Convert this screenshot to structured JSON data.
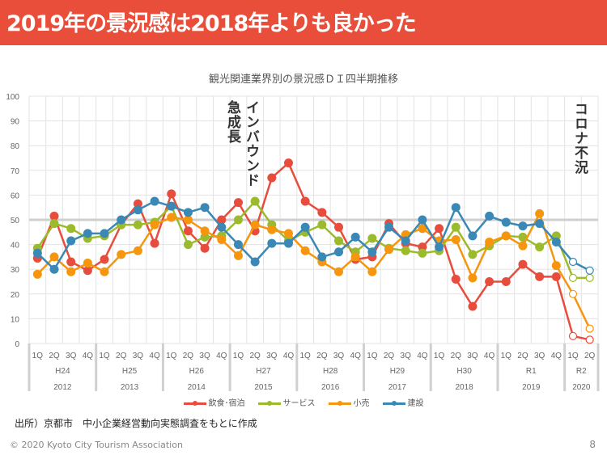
{
  "header": {
    "title": "2019年の景況感は2018年よりも良かった",
    "color": "#e94e3a"
  },
  "annotations": {
    "inbound": "インバウンド",
    "rapid_growth": "急成長",
    "corona": "コロナ不況"
  },
  "source": "出所）京都市　中小企業経営動向実態調査をもとに作成",
  "footer": {
    "copyright": "© 2020 Kyoto City Tourism Association",
    "page": "8"
  },
  "chart_data": {
    "type": "line",
    "title": "観光関連業界別の景況感ＤＩ四半期推移",
    "xlabel": "",
    "ylabel": "",
    "ylim": [
      0,
      100
    ],
    "yticks": [
      0,
      10,
      20,
      30,
      40,
      50,
      60,
      70,
      80,
      90,
      100
    ],
    "grid": true,
    "reference_line": 50,
    "legend_position": "bottom",
    "groups": [
      {
        "era": "H24",
        "year": "2012",
        "quarters": [
          "1Q",
          "2Q",
          "3Q",
          "4Q"
        ]
      },
      {
        "era": "H25",
        "year": "2013",
        "quarters": [
          "1Q",
          "2Q",
          "3Q",
          "4Q"
        ]
      },
      {
        "era": "H26",
        "year": "2014",
        "quarters": [
          "1Q",
          "2Q",
          "3Q",
          "4Q"
        ]
      },
      {
        "era": "H27",
        "year": "2015",
        "quarters": [
          "1Q",
          "2Q",
          "3Q",
          "4Q"
        ]
      },
      {
        "era": "H28",
        "year": "2016",
        "quarters": [
          "1Q",
          "2Q",
          "3Q",
          "4Q"
        ]
      },
      {
        "era": "H29",
        "year": "2017",
        "quarters": [
          "1Q",
          "2Q",
          "3Q",
          "4Q"
        ]
      },
      {
        "era": "H30",
        "year": "2018",
        "quarters": [
          "1Q",
          "2Q",
          "3Q",
          "4Q"
        ]
      },
      {
        "era": "R1",
        "year": "2019",
        "quarters": [
          "1Q",
          "2Q",
          "3Q",
          "4Q"
        ]
      },
      {
        "era": "R2",
        "year": "2020",
        "quarters": [
          "1Q",
          "2Q"
        ]
      }
    ],
    "forecast_from_index": 32,
    "series": [
      {
        "name": "飲食･宿泊",
        "color": "#e84c3d",
        "values": [
          34.5,
          51.5,
          33,
          29.5,
          34,
          48,
          56.5,
          40.5,
          60.5,
          45.5,
          38.5,
          50,
          57,
          45.5,
          67,
          73,
          57.5,
          53,
          47,
          34,
          35,
          48.5,
          40.5,
          39,
          46.5,
          26,
          15,
          25,
          25,
          32,
          27,
          27,
          3,
          1.5
        ]
      },
      {
        "name": "サービス",
        "color": "#9bbb2c",
        "values": [
          38.5,
          48.5,
          46.5,
          42.5,
          43.5,
          48,
          48,
          49,
          55.5,
          40,
          43,
          43.5,
          50,
          57.5,
          48,
          41.5,
          45,
          48,
          41.5,
          37,
          42.5,
          38.5,
          37.5,
          36.5,
          37.5,
          47,
          36,
          39.5,
          43.5,
          43,
          39,
          43.5,
          26.5,
          26.5
        ]
      },
      {
        "name": "小売",
        "color": "#f6950e",
        "values": [
          28,
          35,
          29,
          32.5,
          29,
          36,
          37.5,
          48,
          51,
          50,
          45.5,
          42,
          35.5,
          48,
          46,
          44.5,
          37.5,
          33,
          29,
          35,
          29,
          38,
          44,
          46.5,
          41.5,
          42,
          26.5,
          41,
          43.5,
          39.5,
          52.5,
          31.5,
          20,
          6
        ]
      },
      {
        "name": "建設",
        "color": "#3a88b5",
        "values": [
          36.5,
          30,
          41.5,
          44.5,
          44.5,
          50,
          54,
          57.5,
          55.5,
          53,
          55,
          47,
          40,
          33,
          40.5,
          40.5,
          47,
          35,
          37,
          43,
          37,
          47,
          41.5,
          50,
          39,
          55,
          43.5,
          51.5,
          49,
          47.5,
          48.5,
          41,
          33,
          29.5
        ]
      }
    ]
  }
}
